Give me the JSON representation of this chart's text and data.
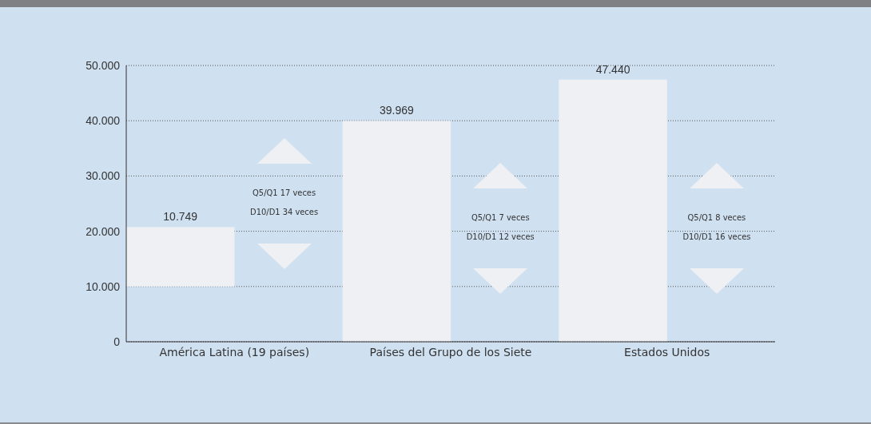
{
  "chart_data": {
    "type": "bar",
    "categories": [
      "América Latina (19 países)",
      "Países del Grupo de los Siete",
      "Estados Unidos"
    ],
    "values": [
      10749,
      39969,
      47440
    ],
    "base": [
      10000,
      0,
      0
    ],
    "value_labels": [
      "10.749",
      "39.969",
      "47.440"
    ],
    "color": "#eef0f3",
    "ylim": [
      0,
      50000
    ],
    "yticks": [
      {
        "value": 0,
        "label": "0"
      },
      {
        "value": 10000,
        "label": "10.000"
      },
      {
        "value": 20000,
        "label": "20.000"
      },
      {
        "value": 30000,
        "label": "30.000"
      },
      {
        "value": 40000,
        "label": "40.000"
      },
      {
        "value": 50000,
        "label": "50.000"
      }
    ],
    "grid": "y",
    "annotations": [
      "Q5/Q1 17 veces",
      "D10/D1 34 veces",
      "Q5/Q1 7 veces",
      "D10/D1 12 veces",
      "Q5/Q1 8 veces",
      "D10/D1 16 veces"
    ]
  }
}
